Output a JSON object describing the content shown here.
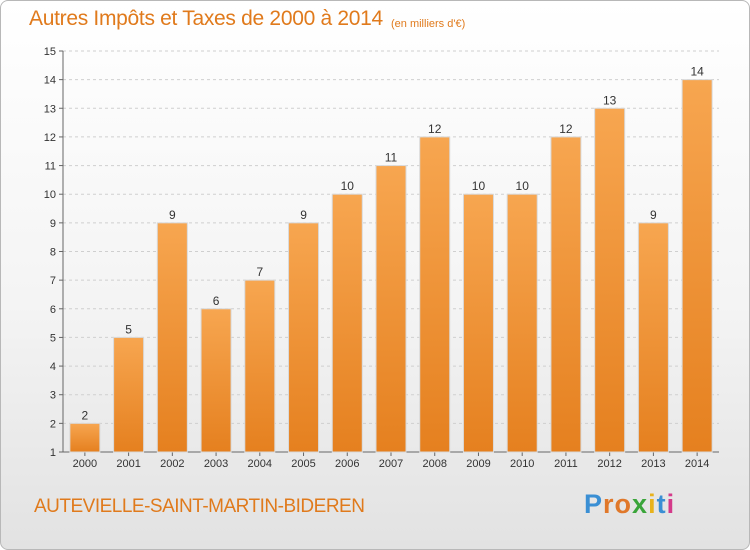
{
  "title": "Autres Impôts et Taxes de 2000 à 2014",
  "unit_note": "(en milliers d'€)",
  "commune": "AUTEVIELLE-SAINT-MARTIN-BIDEREN",
  "brand": "Proxiti",
  "colors": {
    "accent": "#e07a1c",
    "bar_top": "#f7a650",
    "bar_bottom": "#e5801f",
    "grid": "#cfcfcf"
  },
  "chart_data": {
    "type": "bar",
    "title": "Autres Impôts et Taxes de 2000 à 2014",
    "subtitle": "(en milliers d'€)",
    "categories": [
      "2000",
      "2001",
      "2002",
      "2003",
      "2004",
      "2005",
      "2006",
      "2007",
      "2008",
      "2009",
      "2010",
      "2011",
      "2012",
      "2013",
      "2014"
    ],
    "values": [
      2,
      5,
      9,
      6,
      7,
      9,
      10,
      11,
      12,
      10,
      10,
      12,
      13,
      9,
      14
    ],
    "ylim": [
      1,
      15
    ],
    "yticks": [
      1,
      2,
      3,
      4,
      5,
      6,
      7,
      8,
      9,
      10,
      11,
      12,
      13,
      14,
      15
    ],
    "xlabel": "",
    "ylabel": "",
    "grid": true,
    "data_labels": true
  }
}
